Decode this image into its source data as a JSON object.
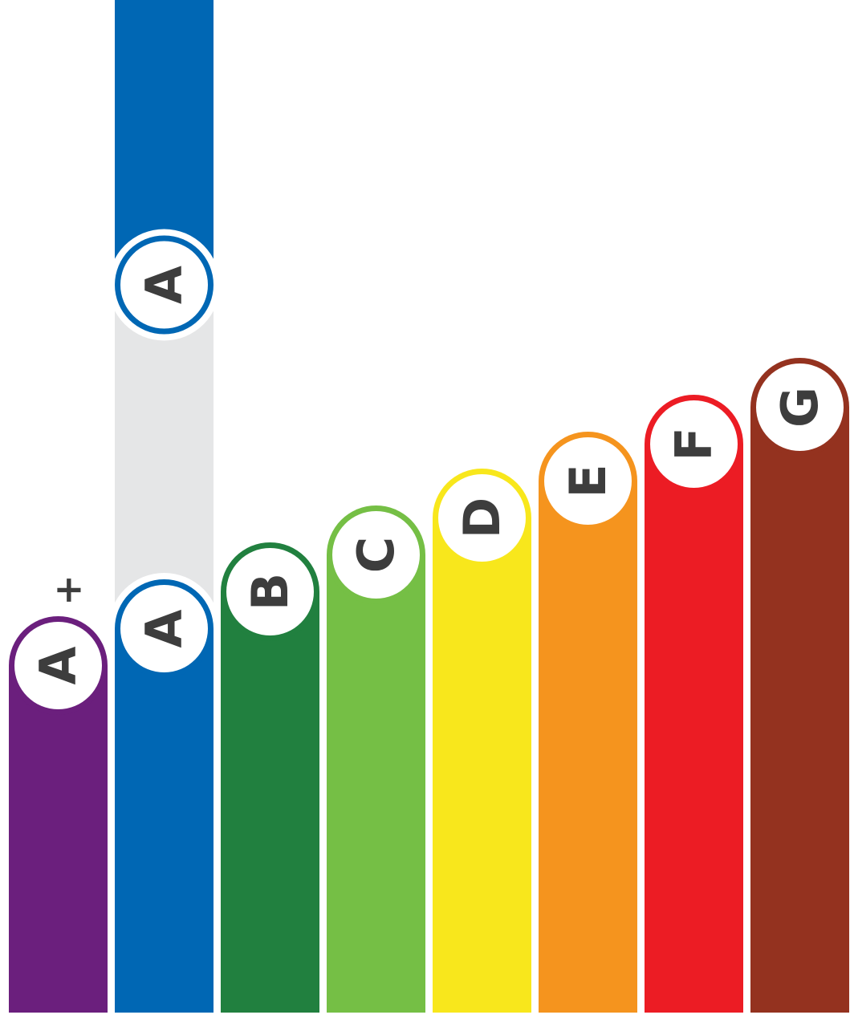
{
  "graphic": {
    "rating_scale": [
      {
        "id": "a-plus",
        "label": "A",
        "superscript": "+",
        "level": 1,
        "color": "#6b1f7d"
      },
      {
        "id": "a",
        "label": "A",
        "superscript": "",
        "level": 2,
        "color": "#0067b4"
      },
      {
        "id": "b",
        "label": "B",
        "superscript": "",
        "level": 3,
        "color": "#21803f"
      },
      {
        "id": "c",
        "label": "C",
        "superscript": "",
        "level": 4,
        "color": "#75bf45"
      },
      {
        "id": "d",
        "label": "D",
        "superscript": "",
        "level": 5,
        "color": "#f8e71c"
      },
      {
        "id": "e",
        "label": "E",
        "superscript": "",
        "level": 6,
        "color": "#f5941e"
      },
      {
        "id": "f",
        "label": "F",
        "superscript": "",
        "level": 7,
        "color": "#ec1c24"
      },
      {
        "id": "g",
        "label": "G",
        "superscript": "",
        "level": 8,
        "color": "#94321f"
      }
    ],
    "highlight": {
      "label": "A",
      "color": "#0067b4",
      "track_color": "#e5e6e7"
    },
    "badge_fill": "#ffffff",
    "label_color": "#3d3d3d"
  }
}
